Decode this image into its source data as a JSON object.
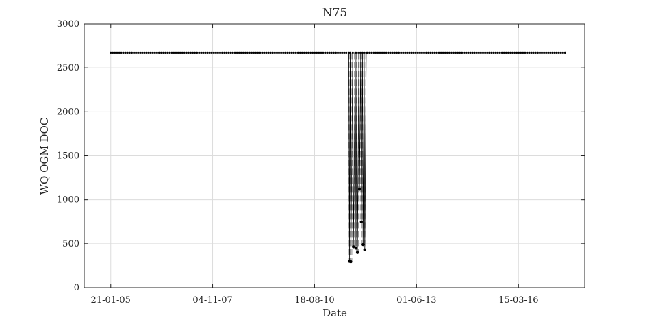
{
  "chart_data": {
    "type": "line",
    "title": "N75",
    "xlabel": "Date",
    "ylabel": "WQ OGM DOC",
    "x_axis": {
      "kind": "date",
      "range": [
        "2004-05-01",
        "2018-01-05"
      ],
      "ticks": [
        {
          "date": "2005-01-21",
          "label": "21-01-05"
        },
        {
          "date": "2007-11-04",
          "label": "04-11-07"
        },
        {
          "date": "2010-08-18",
          "label": "18-08-10"
        },
        {
          "date": "2013-06-01",
          "label": "01-06-13"
        },
        {
          "date": "2016-03-15",
          "label": "15-03-16"
        }
      ]
    },
    "y_axis": {
      "range": [
        0,
        3000
      ],
      "ticks": [
        0,
        500,
        1000,
        1500,
        2000,
        2500,
        3000
      ],
      "tick_labels": [
        "0",
        "500",
        "1000",
        "1500",
        "2000",
        "2500",
        "3000"
      ]
    },
    "grid": true,
    "series": [
      {
        "style": "black dots joined by a thin line; dashed gray drops for the low readings",
        "baseline_value": 2670,
        "baseline_start": "2005-01-21",
        "baseline_end": "2017-06-30",
        "baseline_step_days": 21,
        "dip_points": [
          {
            "date": "2011-08-01",
            "value": 300
          },
          {
            "date": "2011-08-15",
            "value": 295
          },
          {
            "date": "2011-09-10",
            "value": 465
          },
          {
            "date": "2011-10-05",
            "value": 450
          },
          {
            "date": "2011-10-20",
            "value": 400
          },
          {
            "date": "2011-11-10",
            "value": 1120
          },
          {
            "date": "2011-11-28",
            "value": 750
          },
          {
            "date": "2011-12-15",
            "value": 490
          },
          {
            "date": "2012-01-01",
            "value": 430
          }
        ]
      }
    ],
    "colors": {
      "line": "#000000",
      "drop_lines": "#9a9a9a",
      "grid": "#dcdcdc",
      "axis": "#262626"
    }
  }
}
